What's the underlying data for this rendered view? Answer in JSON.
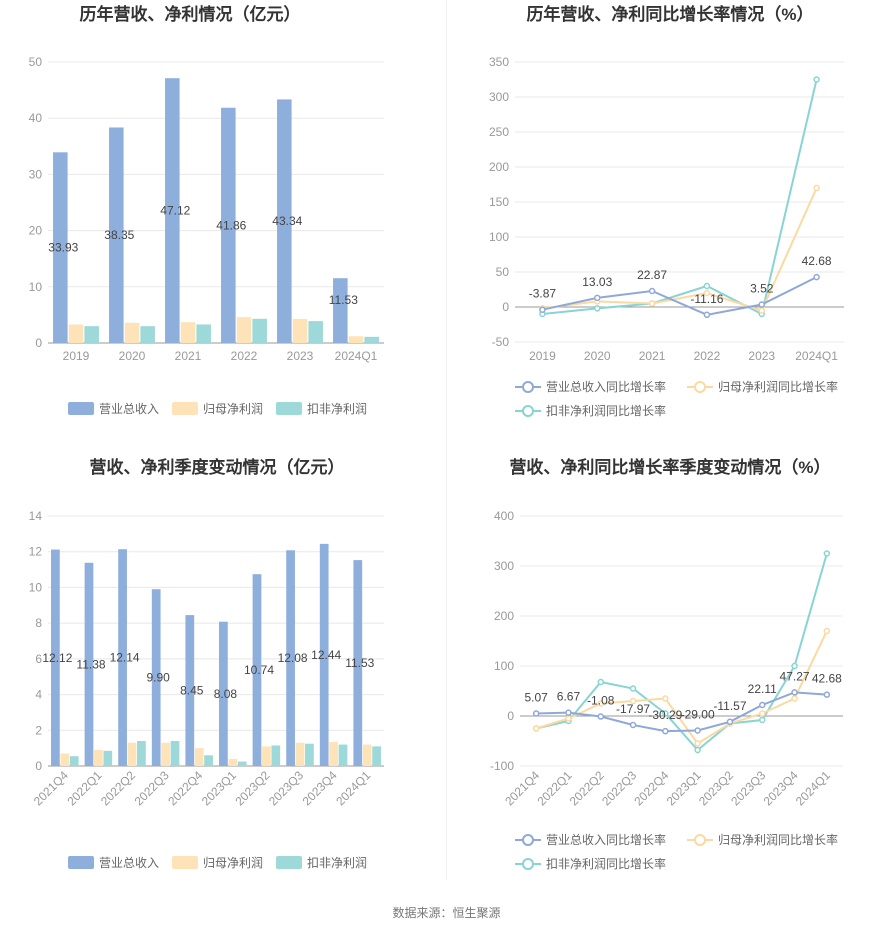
{
  "source_text": "数据来源：恒生聚源",
  "colors": {
    "revenue": "#8EAEDC",
    "net_profit": "#FEE3B8",
    "deducted_profit": "#9ED9DA",
    "rev_growth_line": "#8FA8D8",
    "np_growth_line": "#FCD9A0",
    "dp_growth_line": "#88D4D4",
    "grid": "#E8E8E8",
    "axis": "#999999"
  },
  "chart_data": [
    {
      "type": "bar",
      "title": "历年营收、净利情况（亿元）",
      "categories": [
        "2019",
        "2020",
        "2021",
        "2022",
        "2023",
        "2024Q1"
      ],
      "ylim": [
        0,
        50
      ],
      "yticks": [
        0,
        10,
        20,
        30,
        40,
        50
      ],
      "series": [
        {
          "name": "营业总收入",
          "values": [
            33.93,
            38.35,
            47.12,
            41.86,
            43.34,
            11.53
          ],
          "labels": [
            "33.93",
            "38.35",
            "47.12",
            "41.86",
            "43.34",
            "11.53"
          ]
        },
        {
          "name": "归母净利润",
          "values": [
            3.3,
            3.6,
            3.7,
            4.6,
            4.3,
            1.2
          ]
        },
        {
          "name": "扣非净利润",
          "values": [
            3.0,
            3.0,
            3.3,
            4.3,
            3.9,
            1.1
          ]
        }
      ],
      "legend": "bottom"
    },
    {
      "type": "line",
      "title": "历年营收、净利同比增长率情况（%）",
      "categories": [
        "2019",
        "2020",
        "2021",
        "2022",
        "2023",
        "2024Q1"
      ],
      "ylim": [
        -50,
        350
      ],
      "yticks": [
        -50,
        0,
        50,
        100,
        150,
        200,
        250,
        300,
        350
      ],
      "series": [
        {
          "name": "营业总收入同比增长率",
          "values": [
            -3.87,
            13.03,
            22.87,
            -11.16,
            3.52,
            42.68
          ],
          "labels": [
            "-3.87",
            "13.03",
            "22.87",
            "-11.16",
            "3.52",
            "42.68"
          ]
        },
        {
          "name": "归母净利润同比增长率",
          "values": [
            -2,
            8,
            5,
            20,
            -5,
            170
          ]
        },
        {
          "name": "扣非净利润同比增长率",
          "values": [
            -10,
            -2,
            5,
            30,
            -10,
            325
          ]
        }
      ],
      "legend": "bottom"
    },
    {
      "type": "bar",
      "title": "营收、净利季度变动情况（亿元）",
      "categories": [
        "2021Q4",
        "2022Q1",
        "2022Q2",
        "2022Q3",
        "2022Q4",
        "2023Q1",
        "2023Q2",
        "2023Q3",
        "2023Q4",
        "2024Q1"
      ],
      "ylim": [
        0,
        14
      ],
      "yticks": [
        0,
        2,
        4,
        6,
        8,
        10,
        12,
        14
      ],
      "series": [
        {
          "name": "营业总收入",
          "values": [
            12.12,
            11.38,
            12.14,
            9.9,
            8.45,
            8.08,
            10.74,
            12.08,
            12.44,
            11.53
          ],
          "labels": [
            "12.12",
            "11.38",
            "12.14",
            "9.90",
            "8.45",
            "8.08",
            "10.74",
            "12.08",
            "12.44",
            "11.53"
          ]
        },
        {
          "name": "归母净利润",
          "values": [
            0.7,
            0.9,
            1.3,
            1.3,
            1.0,
            0.4,
            1.1,
            1.3,
            1.35,
            1.2
          ]
        },
        {
          "name": "扣非净利润",
          "values": [
            0.55,
            0.85,
            1.4,
            1.4,
            0.6,
            0.25,
            1.15,
            1.25,
            1.2,
            1.1
          ]
        }
      ],
      "legend": "bottom"
    },
    {
      "type": "line",
      "title": "营收、净利同比增长率季度变动情况（%）",
      "categories": [
        "2021Q4",
        "2022Q1",
        "2022Q2",
        "2022Q3",
        "2022Q4",
        "2023Q1",
        "2023Q2",
        "2023Q3",
        "2023Q4",
        "2024Q1"
      ],
      "ylim": [
        -100,
        400
      ],
      "yticks": [
        -100,
        0,
        100,
        200,
        300,
        400
      ],
      "series": [
        {
          "name": "营业总收入同比增长率",
          "values": [
            5.07,
            6.67,
            -1.08,
            -17.97,
            -30.29,
            -29.0,
            -11.57,
            22.11,
            47.27,
            42.68
          ],
          "labels": [
            "5.07",
            "6.67",
            "-1.08",
            "-17.97",
            "-30.29",
            "-29.00",
            "-11.57",
            "22.11",
            "47.27",
            "42.68"
          ]
        },
        {
          "name": "归母净利润同比增长率",
          "values": [
            -25,
            -5,
            25,
            30,
            35,
            -55,
            -15,
            5,
            35,
            170
          ]
        },
        {
          "name": "扣非净利润同比增长率",
          "values": [
            -25,
            -10,
            68,
            55,
            5,
            -68,
            -15,
            -8,
            100,
            325
          ]
        }
      ],
      "legend": "bottom"
    }
  ]
}
